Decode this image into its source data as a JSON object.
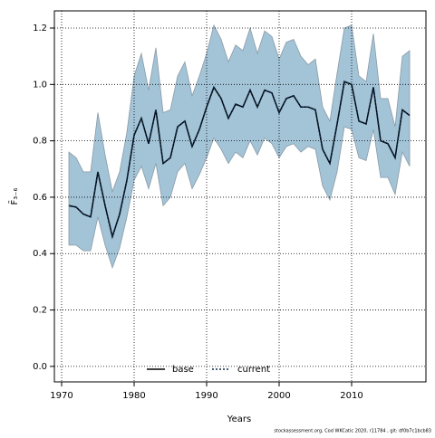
{
  "chart_data": {
    "type": "line",
    "xlabel": "Years",
    "ylabel": "F̄₃₋₆",
    "footer": "stockassessment.org, Cod WKCatic 2020, r11784 , git: df0b7c1bcb83",
    "x": [
      1971,
      1972,
      1973,
      1974,
      1975,
      1976,
      1977,
      1978,
      1979,
      1980,
      1981,
      1982,
      1983,
      1984,
      1985,
      1986,
      1987,
      1988,
      1989,
      1990,
      1991,
      1992,
      1993,
      1994,
      1995,
      1996,
      1997,
      1998,
      1999,
      2000,
      2001,
      2002,
      2003,
      2004,
      2005,
      2006,
      2007,
      2008,
      2009,
      2010,
      2011,
      2012,
      2013,
      2014,
      2015,
      2016,
      2017,
      2018
    ],
    "band": {
      "color": "#a3c3d7",
      "edge": "#8a9aa6",
      "upper": [
        0.76,
        0.74,
        0.69,
        0.69,
        0.9,
        0.75,
        0.62,
        0.69,
        0.83,
        1.03,
        1.11,
        0.98,
        1.13,
        0.9,
        0.91,
        1.03,
        1.08,
        0.96,
        1.03,
        1.11,
        1.21,
        1.16,
        1.08,
        1.14,
        1.12,
        1.2,
        1.11,
        1.19,
        1.17,
        1.09,
        1.15,
        1.16,
        1.1,
        1.07,
        1.09,
        0.92,
        0.87,
        1.04,
        1.2,
        1.21,
        1.03,
        1.01,
        1.18,
        0.95,
        0.95,
        0.85,
        1.1,
        1.12
      ],
      "lower": [
        0.43,
        0.43,
        0.41,
        0.41,
        0.53,
        0.43,
        0.35,
        0.42,
        0.53,
        0.66,
        0.71,
        0.63,
        0.72,
        0.57,
        0.6,
        0.69,
        0.72,
        0.63,
        0.68,
        0.74,
        0.81,
        0.77,
        0.72,
        0.76,
        0.74,
        0.8,
        0.75,
        0.81,
        0.79,
        0.74,
        0.78,
        0.79,
        0.76,
        0.78,
        0.77,
        0.64,
        0.59,
        0.69,
        0.85,
        0.84,
        0.74,
        0.73,
        0.84,
        0.67,
        0.67,
        0.61,
        0.76,
        0.71
      ]
    },
    "series": [
      {
        "name": "base",
        "color": "#000000",
        "dash": false,
        "values": [
          0.57,
          0.565,
          0.54,
          0.53,
          0.69,
          0.57,
          0.46,
          0.54,
          0.66,
          0.82,
          0.88,
          0.79,
          0.91,
          0.72,
          0.74,
          0.85,
          0.87,
          0.78,
          0.84,
          0.92,
          0.99,
          0.95,
          0.88,
          0.93,
          0.92,
          0.98,
          0.92,
          0.98,
          0.97,
          0.9,
          0.95,
          0.96,
          0.92,
          0.92,
          0.91,
          0.77,
          0.72,
          0.86,
          1.01,
          1.0,
          0.87,
          0.86,
          0.99,
          0.8,
          0.79,
          0.74,
          0.91,
          0.89
        ]
      },
      {
        "name": "current",
        "color": "#0b2a4a",
        "dash": true,
        "values": [
          0.57,
          0.565,
          0.54,
          0.53,
          0.69,
          0.57,
          0.46,
          0.54,
          0.66,
          0.82,
          0.88,
          0.79,
          0.91,
          0.72,
          0.74,
          0.85,
          0.87,
          0.78,
          0.84,
          0.92,
          0.99,
          0.95,
          0.88,
          0.93,
          0.92,
          0.98,
          0.92,
          0.98,
          0.97,
          0.9,
          0.95,
          0.96,
          0.92,
          0.92,
          0.91,
          0.77,
          0.72,
          0.86,
          1.01,
          1.0,
          0.87,
          0.86,
          0.99,
          0.8,
          0.79,
          0.74,
          0.91,
          0.89
        ]
      }
    ],
    "xlim": [
      1969,
      2020.25
    ],
    "ylim": [
      -0.055,
      1.261
    ],
    "xticks": [
      1970,
      1980,
      1990,
      2000,
      2010
    ],
    "yticks": [
      {
        "value": 0,
        "label": "0.0"
      },
      0.2,
      0.4,
      0.6,
      0.8,
      {
        "value": 1,
        "label": "1.0"
      },
      1.2
    ],
    "grid": true,
    "legend": "bottom"
  }
}
